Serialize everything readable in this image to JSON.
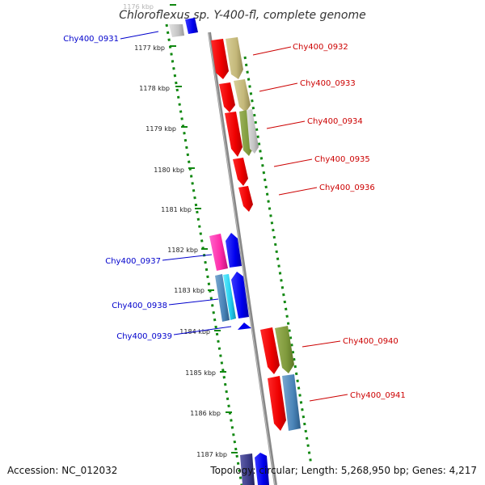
{
  "title": "Chloroflexus sp. Y-400-fl, complete genome",
  "footer": {
    "accession": "Accession: NC_012032",
    "summary": "Topology: circular; Length: 5,268,950 bp; Genes: 4,217"
  },
  "colors": {
    "left_label": "#0000cc",
    "right_label": "#cc0000",
    "backbone": "#888888",
    "dots": "#118811"
  },
  "ticks": [
    "1176 kbp",
    "1177 kbp",
    "1178 kbp",
    "1179 kbp",
    "1180 kbp",
    "1181 kbp",
    "1182 kbp",
    "1183 kbp",
    "1184 kbp",
    "1185 kbp",
    "1186 kbp",
    "1187 kbp"
  ],
  "labels_left": [
    "Chy400_0931",
    "Chy400_0937",
    "Chy400_0938",
    "Chy400_0939"
  ],
  "labels_right": [
    "Chy400_0932",
    "Chy400_0933",
    "Chy400_0934",
    "Chy400_0935",
    "Chy400_0936",
    "Chy400_0940",
    "Chy400_0941"
  ]
}
